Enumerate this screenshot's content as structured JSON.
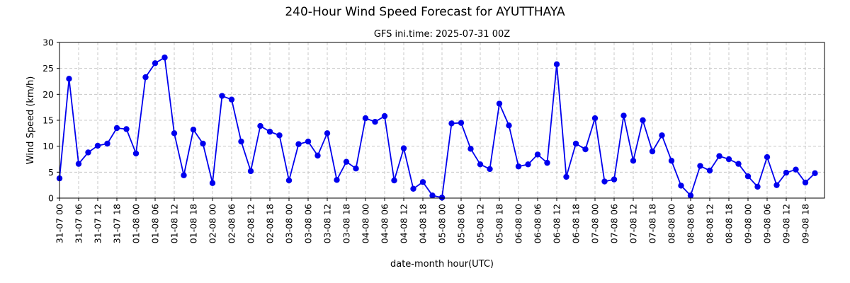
{
  "chart_data": {
    "type": "line",
    "title": "240-Hour Wind Speed Forecast for AYUTTHAYA",
    "subtitle": "GFS ini.time: 2025-07-31 00Z",
    "xlabel": "date-month hour(UTC)",
    "ylabel": "Wind Speed (km/h)",
    "ylim": [
      0,
      30
    ],
    "yticks": [
      0,
      5,
      10,
      15,
      20,
      25,
      30
    ],
    "grid": true,
    "color": "#0000ee",
    "x_step_hours": 3,
    "xticks": [
      "31-07 00",
      "31-07 06",
      "31-07 12",
      "31-07 18",
      "01-08 00",
      "01-08 06",
      "01-08 12",
      "01-08 18",
      "02-08 00",
      "02-08 06",
      "02-08 12",
      "02-08 18",
      "03-08 00",
      "03-08 06",
      "03-08 12",
      "03-08 18",
      "04-08 00",
      "04-08 06",
      "04-08 12",
      "04-08 18",
      "05-08 00",
      "05-08 06",
      "05-08 12",
      "05-08 18",
      "06-08 00",
      "06-08 06",
      "06-08 12",
      "06-08 18",
      "07-08 00",
      "07-08 06",
      "07-08 12",
      "07-08 18",
      "08-08 00",
      "08-08 06",
      "08-08 12",
      "08-08 18",
      "09-08 00",
      "09-08 06",
      "09-08 12",
      "09-08 18"
    ],
    "series": [
      {
        "values": [
          3.8,
          23.0,
          6.6,
          8.8,
          10.1,
          10.5,
          13.5,
          13.3,
          8.6,
          23.3,
          26.0,
          27.1,
          12.5,
          4.4,
          13.2,
          10.5,
          2.9,
          19.7,
          19.0,
          10.9,
          5.2,
          13.9,
          12.8,
          12.1,
          3.4,
          10.4,
          10.9,
          8.2,
          12.5,
          3.5,
          7.0,
          5.7,
          15.4,
          14.7,
          15.8,
          3.4,
          9.6,
          1.8,
          3.1,
          0.5,
          0.1,
          14.4,
          14.5,
          9.5,
          6.5,
          5.6,
          18.2,
          14.0,
          6.1,
          6.5,
          8.4,
          6.8,
          25.8,
          4.1,
          10.5,
          9.4,
          15.4,
          3.2,
          3.6,
          15.9,
          7.2,
          15.0,
          9.0,
          12.1,
          7.2,
          2.4,
          0.5,
          6.2,
          5.3,
          8.1,
          7.5,
          6.6,
          4.2,
          2.2,
          7.9,
          2.5,
          4.9,
          5.5,
          3.0,
          4.8
        ]
      }
    ]
  }
}
